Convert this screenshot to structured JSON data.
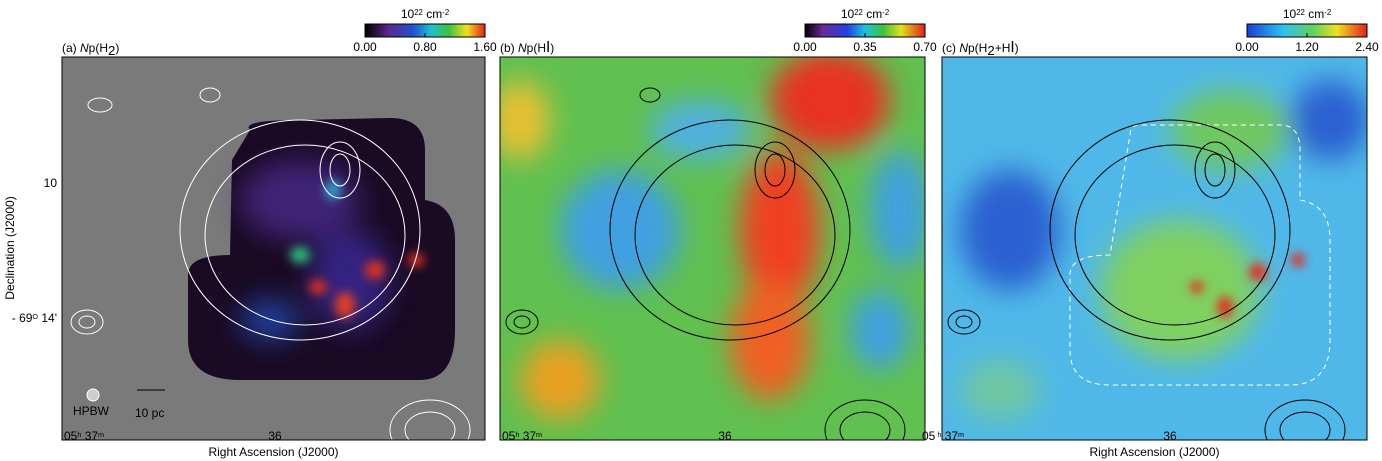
{
  "panels": [
    {
      "title": [
        {
          "text": "(a) ",
          "style": "normal"
        },
        {
          "text": "N",
          "style": "italic"
        },
        {
          "text": "p(H",
          "style": "normal"
        },
        {
          "text": "2",
          "style": "sub"
        },
        {
          "text": ")",
          "style": "normal"
        }
      ],
      "colorbar": {
        "unit": [
          {
            "text": "10",
            "style": "normal"
          },
          {
            "text": "22",
            "style": "sup"
          },
          {
            "text": " cm",
            "style": "normal"
          },
          {
            "text": "-2",
            "style": "sup"
          }
        ],
        "clim": [
          0,
          1.6
        ],
        "ticks": [
          {
            "value": 0,
            "label": "0.00"
          },
          {
            "value": 0.8,
            "label": "0.80"
          },
          {
            "value": 1.6,
            "label": "1.60"
          }
        ]
      },
      "x_ticks": [
        [
          {
            "text": "05",
            "style": "normal"
          },
          {
            "text": "h",
            "style": "sup"
          },
          {
            "text": " 37",
            "style": "normal"
          },
          {
            "text": "m",
            "style": "sup"
          }
        ],
        [
          {
            "text": "36",
            "style": "normal"
          }
        ]
      ],
      "y_ticks": [
        [
          {
            "text": "10",
            "style": "normal"
          }
        ],
        [
          {
            "text": "- 69",
            "style": "normal"
          },
          {
            "text": "O",
            "style": "sup"
          },
          {
            "text": " 14'",
            "style": "normal"
          }
        ]
      ],
      "y_label": "Declination (J2000)",
      "x_label": "Right Ascension (J2000)",
      "annotations": [
        "HPBW",
        "10 pc"
      ]
    },
    {
      "title": [
        {
          "text": "(b) ",
          "style": "normal"
        },
        {
          "text": "N",
          "style": "italic"
        },
        {
          "text": "p(H",
          "style": "normal"
        },
        {
          "text": "I",
          "style": "small"
        },
        {
          "text": ")",
          "style": "normal"
        }
      ],
      "colorbar": {
        "unit": [
          {
            "text": "10",
            "style": "normal"
          },
          {
            "text": "22",
            "style": "sup"
          },
          {
            "text": " cm",
            "style": "normal"
          },
          {
            "text": "-2",
            "style": "sup"
          }
        ],
        "clim": [
          0,
          0.7
        ],
        "ticks": [
          {
            "value": 0,
            "label": "0.00"
          },
          {
            "value": 0.35,
            "label": "0.35"
          },
          {
            "value": 0.7,
            "label": "0.70"
          }
        ]
      },
      "x_ticks": [
        [
          {
            "text": "05",
            "style": "normal"
          },
          {
            "text": "h",
            "style": "sup"
          },
          {
            "text": " 37",
            "style": "normal"
          },
          {
            "text": "m",
            "style": "sup"
          }
        ],
        [
          {
            "text": "36",
            "style": "normal"
          }
        ]
      ]
    },
    {
      "title": [
        {
          "text": "(c) ",
          "style": "normal"
        },
        {
          "text": "N",
          "style": "italic"
        },
        {
          "text": "p(H",
          "style": "normal"
        },
        {
          "text": "2",
          "style": "sub"
        },
        {
          "text": "+H",
          "style": "normal"
        },
        {
          "text": "I",
          "style": "small"
        },
        {
          "text": ")",
          "style": "normal"
        }
      ],
      "colorbar": {
        "unit": [
          {
            "text": "10",
            "style": "normal"
          },
          {
            "text": "22",
            "style": "sup"
          },
          {
            "text": " cm",
            "style": "normal"
          },
          {
            "text": "-2",
            "style": "sup"
          }
        ],
        "clim": [
          0,
          2.4
        ],
        "ticks": [
          {
            "value": 0,
            "label": "0.00"
          },
          {
            "value": 1.2,
            "label": "1.20"
          },
          {
            "value": 2.4,
            "label": "2.40"
          }
        ]
      },
      "x_ticks": [
        [
          {
            "text": "05",
            "style": "normal"
          },
          {
            "text": " h",
            "style": "sup"
          },
          {
            "text": " 37",
            "style": "normal"
          },
          {
            "text": "m",
            "style": "sup"
          }
        ],
        [
          {
            "text": "36",
            "style": "normal"
          }
        ]
      ],
      "x_label": "Right Ascension (J2000)"
    }
  ]
}
